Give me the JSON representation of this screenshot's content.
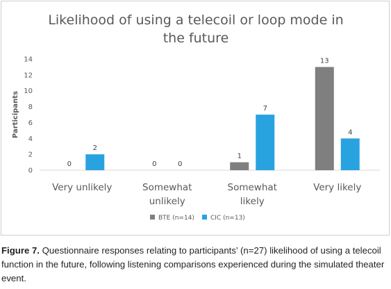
{
  "chart_data": {
    "type": "bar",
    "title": "Likelihood of using a telecoil or loop mode in the future",
    "ylabel": "Participants",
    "xlabel": "",
    "ylim": [
      0,
      14
    ],
    "yticks": [
      0,
      2,
      4,
      6,
      8,
      10,
      12,
      14
    ],
    "grid": false,
    "legend_position": "bottom",
    "categories": [
      "Very unlikely",
      "Somewhat unlikely",
      "Somewhat likely",
      "Very likely"
    ],
    "series": [
      {
        "name": "BTE (n=14)",
        "color": "#7f7f7f",
        "values": [
          0,
          0,
          1,
          13
        ]
      },
      {
        "name": "CIC (n=13)",
        "color": "#29a3e0",
        "values": [
          2,
          0,
          7,
          4
        ]
      }
    ]
  },
  "caption": {
    "label": "Figure 7.",
    "text": "Questionnaire responses relating to participants’ (n=27) likelihood of using a telecoil function in the future, following listening comparisons experienced during the simulated theater event."
  }
}
